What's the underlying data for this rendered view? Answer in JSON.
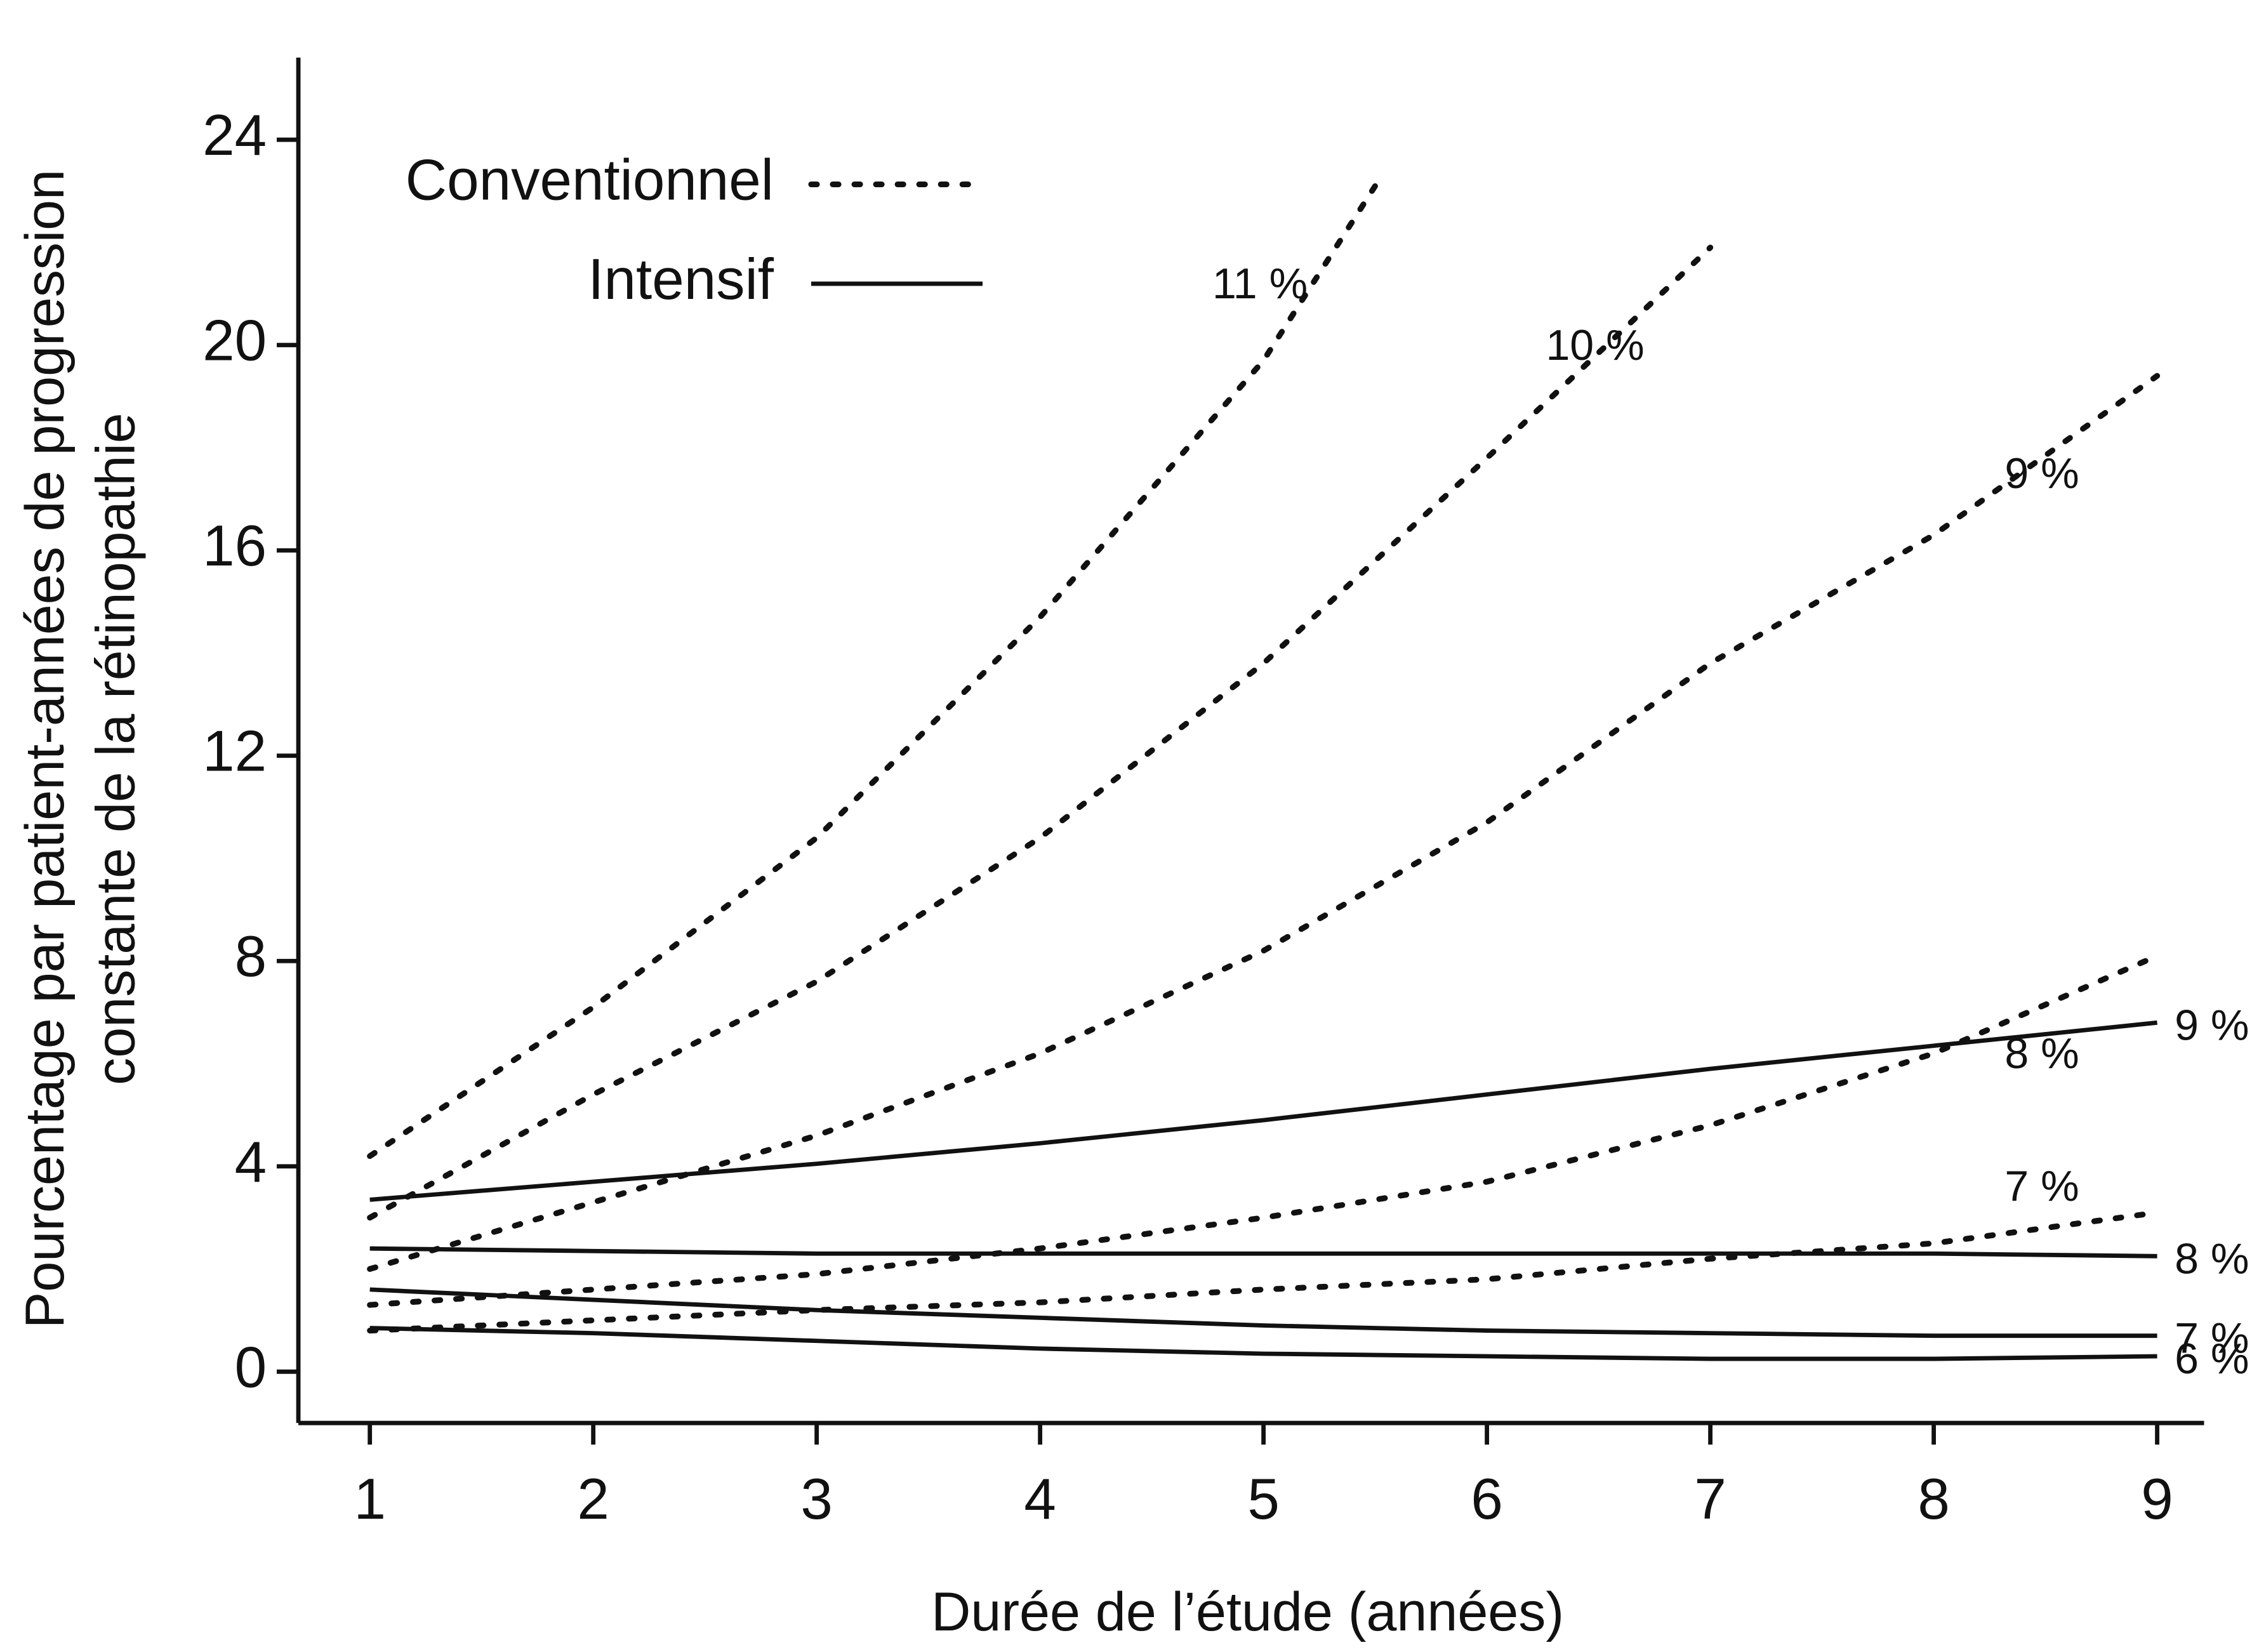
{
  "chart_data": {
    "type": "line",
    "ylabel": [
      "Pourcentage par patient-années de progression",
      "constante de la rétinopathie"
    ],
    "xlabel": "Durée de l’étude (années)",
    "xlim": [
      0.68,
      9.21
    ],
    "xticks": [
      1,
      2,
      3,
      4,
      5,
      6,
      7,
      8,
      9
    ],
    "ylim": [
      -1,
      25.6
    ],
    "yticks": [
      0,
      4,
      8,
      12,
      16,
      20,
      24
    ],
    "color": "#111111",
    "legend": [
      {
        "label": "Conventionnel",
        "style": "dotted"
      },
      {
        "label": "Intensif",
        "style": "solid"
      }
    ],
    "series": [
      {
        "name": "11 %",
        "style": "dotted",
        "x": [
          1,
          2,
          3,
          4,
          5,
          5.5
        ],
        "values": [
          4.2,
          7.1,
          10.4,
          14.7,
          19.7,
          23.1
        ]
      },
      {
        "name": "10 %",
        "style": "dotted",
        "x": [
          1,
          2,
          3,
          4,
          5,
          6,
          7
        ],
        "values": [
          3.0,
          5.4,
          7.6,
          10.4,
          13.8,
          17.8,
          21.9
        ]
      },
      {
        "name": "9 %",
        "style": "dotted",
        "x": [
          1,
          2,
          3,
          4,
          5,
          6,
          7,
          8,
          9
        ],
        "values": [
          2.0,
          3.3,
          4.6,
          6.2,
          8.2,
          10.7,
          13.8,
          16.3,
          19.4
        ]
      },
      {
        "name": "8 %",
        "style": "dotted",
        "x": [
          1,
          2,
          3,
          4,
          5,
          6,
          7,
          8,
          9
        ],
        "values": [
          1.3,
          1.6,
          1.9,
          2.4,
          3.0,
          3.7,
          4.8,
          6.2,
          8.1
        ]
      },
      {
        "name": "7 %",
        "style": "dotted",
        "x": [
          1,
          2,
          3,
          4,
          5,
          6,
          7,
          8,
          9
        ],
        "values": [
          0.8,
          1.0,
          1.2,
          1.35,
          1.6,
          1.8,
          2.2,
          2.5,
          3.1
        ]
      },
      {
        "name": "9 %",
        "style": "solid",
        "x": [
          1,
          2,
          3,
          4,
          5,
          6,
          7,
          8,
          9
        ],
        "values": [
          3.35,
          3.7,
          4.05,
          4.45,
          4.9,
          5.4,
          5.9,
          6.35,
          6.8
        ]
      },
      {
        "name": "8 %",
        "style": "solid",
        "x": [
          1,
          2,
          3,
          4,
          5,
          6,
          7,
          8,
          9
        ],
        "values": [
          2.4,
          2.35,
          2.3,
          2.3,
          2.3,
          2.3,
          2.3,
          2.3,
          2.25
        ]
      },
      {
        "name": "7 %",
        "style": "solid",
        "x": [
          1,
          2,
          3,
          4,
          5,
          6,
          7,
          8,
          9
        ],
        "values": [
          1.6,
          1.4,
          1.2,
          1.05,
          0.9,
          0.8,
          0.75,
          0.7,
          0.7
        ]
      },
      {
        "name": "6 %",
        "style": "solid",
        "x": [
          1,
          2,
          3,
          4,
          5,
          6,
          7,
          8,
          9
        ],
        "values": [
          0.85,
          0.75,
          0.6,
          0.45,
          0.35,
          0.3,
          0.25,
          0.25,
          0.3
        ]
      }
    ]
  }
}
